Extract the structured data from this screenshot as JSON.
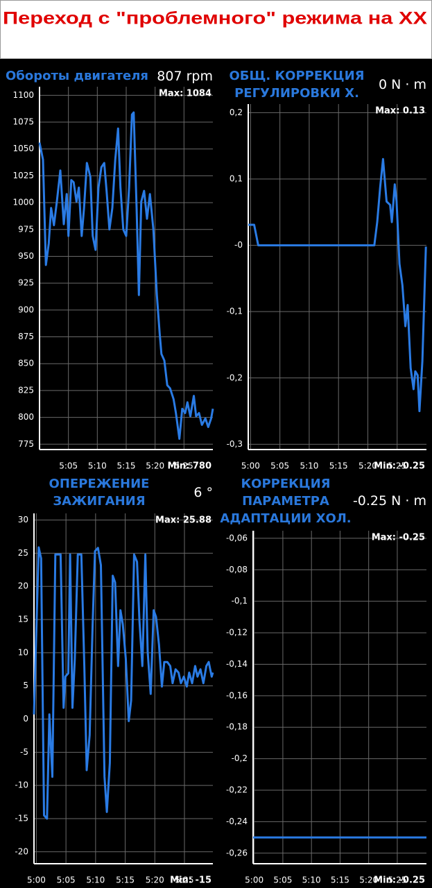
{
  "header": {
    "title": "Переход с \"проблемного\" режима на XX"
  },
  "chart_data": [
    {
      "type": "line",
      "title": [
        "Обороты двигателя"
      ],
      "current_value": 807,
      "unit": "rpm",
      "max_label": "Max: 1084",
      "min_label": "Min: 780",
      "color": "#2a7be4",
      "grid": true,
      "xlim": [
        300,
        330
      ],
      "ylim": [
        770,
        1108
      ],
      "xticks": [
        {
          "value": 305,
          "label": "5:05"
        },
        {
          "value": 310,
          "label": "5:10"
        },
        {
          "value": 315,
          "label": "5:15"
        },
        {
          "value": 320,
          "label": "5:20"
        },
        {
          "value": 325,
          "label": "5:25"
        }
      ],
      "yticks": [
        775,
        800,
        825,
        850,
        875,
        900,
        925,
        950,
        975,
        1000,
        1025,
        1050,
        1075,
        1100
      ],
      "x": [
        300,
        300.6,
        301.1,
        301.6,
        302,
        302.5,
        303,
        303.6,
        304.2,
        304.7,
        305,
        305.5,
        305.9,
        306.4,
        306.8,
        307.3,
        307.7,
        308.2,
        308.8,
        309.2,
        309.7,
        310.2,
        310.7,
        311.2,
        311.6,
        312.1,
        312.6,
        313.1,
        313.6,
        314,
        314.5,
        315,
        315.5,
        316,
        316.3,
        316.8,
        317.2,
        317.6,
        318.1,
        318.6,
        319.1,
        319.7,
        320.3,
        320.8,
        321.1,
        321.6,
        322.1,
        322.6,
        323.2,
        323.6,
        324.2,
        324.7,
        325.2,
        325.6,
        326.1,
        326.7,
        327.1,
        327.6,
        328.1,
        328.7,
        329.2,
        329.7,
        330
      ],
      "values": [
        1056,
        1040,
        942,
        962,
        995,
        979,
        1001,
        1030,
        980,
        1008,
        969,
        1021,
        1019,
        1001,
        1014,
        969,
        995,
        1037,
        1024,
        969,
        956,
        1014,
        1033,
        1037,
        1011,
        975,
        995,
        1040,
        1069,
        1014,
        975,
        969,
        1014,
        1082,
        1084,
        995,
        914,
        1001,
        1011,
        985,
        1008,
        975,
        914,
        878,
        859,
        853,
        830,
        827,
        817,
        804,
        780,
        808,
        804,
        814,
        801,
        820,
        801,
        804,
        793,
        799,
        791,
        799,
        808
      ]
    },
    {
      "type": "line",
      "title": [
        "ОБЩ. КОРРЕКЦИЯ",
        "РЕГУЛИРОВКИ Х."
      ],
      "current_value": 0,
      "unit": "N · m",
      "max_label": "Max: 0.13",
      "min_label": "Min: -0.25",
      "color": "#2a7be4",
      "grid": true,
      "xlim": [
        299.6,
        330
      ],
      "ylim": [
        -0.308,
        0.213
      ],
      "xticks": [
        {
          "value": 300,
          "label": "5:00"
        },
        {
          "value": 305,
          "label": "5:05"
        },
        {
          "value": 310,
          "label": "5:10"
        },
        {
          "value": 315,
          "label": "5:15"
        },
        {
          "value": 320,
          "label": "5:20"
        },
        {
          "value": 325,
          "label": "5:25"
        }
      ],
      "yticks": [
        {
          "value": -0.3,
          "label": "-0,3"
        },
        {
          "value": -0.2,
          "label": "-0,2"
        },
        {
          "value": -0.1,
          "label": "-0,1"
        },
        {
          "value": 0,
          "label": "-0"
        },
        {
          "value": 0.1,
          "label": "0,1"
        },
        {
          "value": 0.2,
          "label": "0,2"
        }
      ],
      "x": [
        299.6,
        300.6,
        301.3,
        321.1,
        321.6,
        322.1,
        322.6,
        323.2,
        323.8,
        324.1,
        324.6,
        324.9,
        325.4,
        325.9,
        326.4,
        326.8,
        327.3,
        327.8,
        328.1,
        328.5,
        328.8,
        329.3,
        329.9
      ],
      "values": [
        0.031,
        0.031,
        0,
        0,
        0.035,
        0.087,
        0.13,
        0.066,
        0.061,
        0.035,
        0.092,
        0.066,
        -0.028,
        -0.06,
        -0.122,
        -0.09,
        -0.185,
        -0.217,
        -0.19,
        -0.196,
        -0.25,
        -0.175,
        -0.002
      ]
    },
    {
      "type": "line",
      "title": [
        "ОПЕРЕЖЕНИЕ",
        "ЗАЖИГАНИЯ"
      ],
      "current_value": 6,
      "unit": "°",
      "max_label": "Max: 25.88",
      "min_label": "Min: -15",
      "color": "#2a7be4",
      "grid": true,
      "xlim": [
        299.6,
        329.8
      ],
      "ylim": [
        -21.8,
        31
      ],
      "xticks": [
        {
          "value": 300,
          "label": "5:00"
        },
        {
          "value": 305,
          "label": "5:05"
        },
        {
          "value": 310,
          "label": "5:10"
        },
        {
          "value": 315,
          "label": "5:15"
        },
        {
          "value": 320,
          "label": "5:20"
        },
        {
          "value": 325,
          "label": "5:25"
        }
      ],
      "yticks": [
        -20,
        -15,
        -10,
        -5,
        0,
        5,
        10,
        15,
        20,
        25,
        30
      ],
      "x": [
        299.6,
        300.4,
        300.8,
        301.3,
        301.8,
        302.2,
        302.7,
        303.2,
        304.1,
        304.6,
        304.9,
        305.4,
        305.7,
        306.1,
        306.5,
        307,
        307.6,
        308.1,
        308.5,
        309,
        309.5,
        309.9,
        310.4,
        310.9,
        311.5,
        311.9,
        312.4,
        312.9,
        313.3,
        313.8,
        314.2,
        314.6,
        315.1,
        315.6,
        316,
        316.5,
        317,
        317.4,
        317.9,
        318.4,
        318.8,
        319.3,
        319.8,
        320.2,
        320.7,
        321.2,
        321.6,
        322.1,
        322.6,
        323,
        323.5,
        324,
        324.4,
        324.9,
        325.4,
        325.8,
        326.3,
        326.8,
        327.2,
        327.7,
        328.2,
        328.7,
        329.1,
        329.6,
        329.8
      ],
      "values": [
        0.7,
        25.88,
        24.2,
        -14.5,
        -15,
        0.7,
        -8.7,
        24.8,
        24.8,
        1.7,
        6.4,
        6.9,
        24.8,
        1.7,
        9.1,
        24.8,
        24.8,
        8,
        -7.7,
        -2.4,
        14.3,
        25.3,
        25.8,
        23.2,
        -8.7,
        -14,
        -6.6,
        21.6,
        20.6,
        8,
        16.4,
        14.3,
        9.1,
        -0.3,
        2.8,
        24.8,
        23.7,
        14.8,
        8,
        24.8,
        10.1,
        3.8,
        16.4,
        15.4,
        11.2,
        4.9,
        8.6,
        8.6,
        8,
        5.4,
        7.5,
        7,
        5.4,
        6.4,
        4.9,
        7,
        5.4,
        8,
        6.4,
        7.5,
        5.4,
        8,
        8.6,
        6.4,
        7
      ]
    },
    {
      "type": "line",
      "title": [
        "КОРРЕКЦИЯ",
        "ПАРАМЕТРА",
        "АДАПТАЦИИ ХОЛ."
      ],
      "current_value": -0.25,
      "unit": "N · m",
      "max_label": "Max: -0.25",
      "min_label": "Min: -0.25",
      "color": "#2a7be4",
      "grid": true,
      "xlim": [
        299.8,
        330.1
      ],
      "ylim": [
        -0.2667,
        -0.0552
      ],
      "xticks": [
        {
          "value": 300,
          "label": "5:00"
        },
        {
          "value": 305,
          "label": "5:05"
        },
        {
          "value": 310,
          "label": "5:10"
        },
        {
          "value": 315,
          "label": "5:15"
        },
        {
          "value": 320,
          "label": "5:20"
        },
        {
          "value": 325,
          "label": "5:25"
        }
      ],
      "yticks": [
        {
          "value": -0.26,
          "label": "-0,26"
        },
        {
          "value": -0.24,
          "label": "-0,24"
        },
        {
          "value": -0.22,
          "label": "-0,22"
        },
        {
          "value": -0.2,
          "label": "-0,2"
        },
        {
          "value": -0.18,
          "label": "-0,18"
        },
        {
          "value": -0.16,
          "label": "-0,16"
        },
        {
          "value": -0.14,
          "label": "-0,14"
        },
        {
          "value": -0.12,
          "label": "-0,12"
        },
        {
          "value": -0.1,
          "label": "-0,1"
        },
        {
          "value": -0.08,
          "label": "-0,08"
        },
        {
          "value": -0.06,
          "label": "-0,06"
        }
      ],
      "x": [
        299.8,
        330.1
      ],
      "values": [
        -0.25,
        -0.25
      ]
    }
  ]
}
